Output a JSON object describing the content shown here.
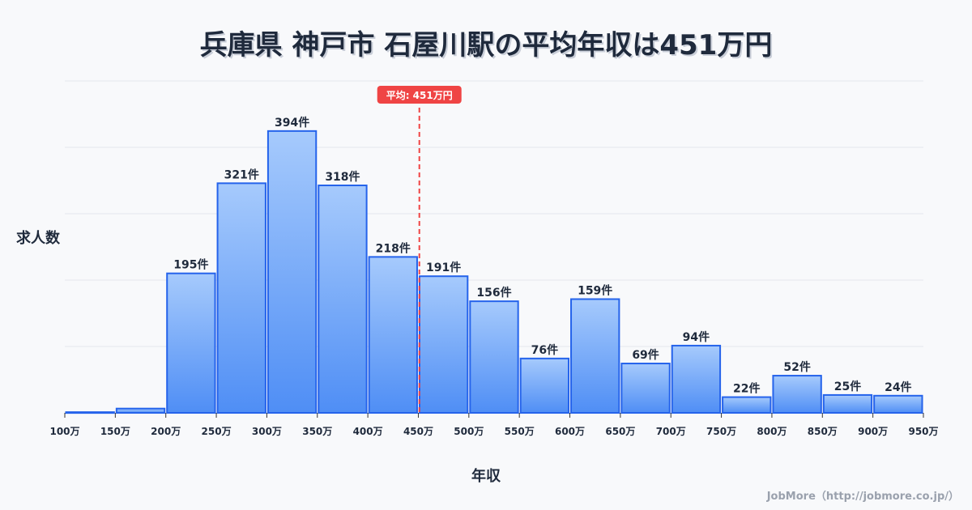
{
  "chart_data": {
    "type": "bar",
    "title": "兵庫県 神戸市 石屋川駅の平均年収は451万円",
    "xlabel": "年収",
    "ylabel": "求人数",
    "tick_labels": [
      "100万",
      "150万",
      "200万",
      "250万",
      "300万",
      "350万",
      "400万",
      "450万",
      "500万",
      "550万",
      "600万",
      "650万",
      "700万",
      "750万",
      "800万",
      "850万",
      "900万",
      "950万"
    ],
    "bin_edges": [
      100,
      150,
      200,
      250,
      300,
      350,
      400,
      450,
      500,
      550,
      600,
      650,
      700,
      750,
      800,
      850,
      900,
      950
    ],
    "values": [
      1,
      6,
      195,
      321,
      394,
      318,
      218,
      191,
      156,
      76,
      159,
      69,
      94,
      22,
      52,
      25,
      24
    ],
    "value_labels": [
      "",
      "",
      "195件",
      "321件",
      "394件",
      "318件",
      "218件",
      "191件",
      "156件",
      "76件",
      "159件",
      "69件",
      "94件",
      "22件",
      "52件",
      "25件",
      "24件"
    ],
    "ylim": [
      0,
      464
    ],
    "grid": true,
    "mean": 451,
    "mean_label": "平均: 451万円",
    "colors": {
      "bar_top": "#a6cafc",
      "bar_bottom": "#4f8ef5",
      "bar_stroke": "#2563eb",
      "mean_line": "#ef4444"
    }
  },
  "credit": "JobMore（http://jobmore.co.jp/）"
}
